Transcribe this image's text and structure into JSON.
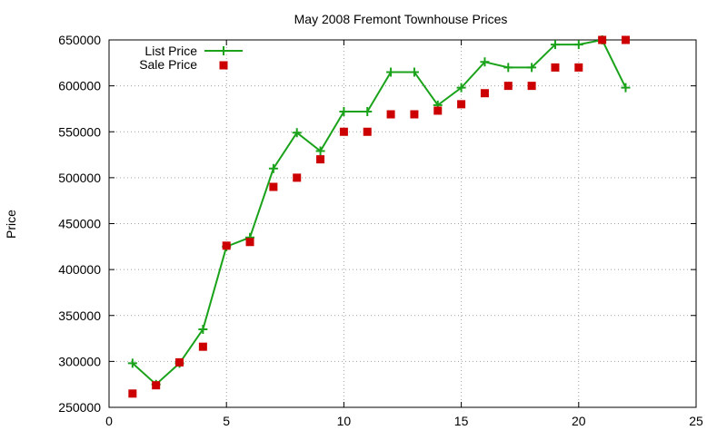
{
  "chart_data": {
    "type": "line",
    "title": "May 2008 Fremont Townhouse Prices",
    "xlabel": "",
    "ylabel": "Price",
    "xlim": [
      0,
      25
    ],
    "ylim": [
      250000,
      650000
    ],
    "x_ticks": [
      0,
      5,
      10,
      15,
      20,
      25
    ],
    "y_ticks": [
      250000,
      300000,
      350000,
      400000,
      450000,
      500000,
      550000,
      600000,
      650000
    ],
    "grid": true,
    "legend_position": "top-left",
    "series": [
      {
        "name": "List Price",
        "style": "line-plus",
        "color": "#1aa31a",
        "x": [
          1,
          2,
          3,
          4,
          5,
          6,
          7,
          8,
          9,
          10,
          11,
          12,
          13,
          14,
          15,
          16,
          17,
          18,
          19,
          20,
          21,
          22
        ],
        "y": [
          298000,
          275000,
          298000,
          335000,
          425000,
          435000,
          510000,
          549000,
          529000,
          572000,
          572000,
          615000,
          615000,
          579000,
          598000,
          626000,
          620000,
          620000,
          645000,
          645000,
          650000,
          598000
        ]
      },
      {
        "name": "Sale Price",
        "style": "square-points",
        "color": "#cc0000",
        "x": [
          1,
          2,
          3,
          4,
          5,
          6,
          7,
          8,
          9,
          10,
          11,
          12,
          13,
          14,
          15,
          16,
          17,
          18,
          19,
          20,
          21,
          22
        ],
        "y": [
          265000,
          274000,
          299000,
          316000,
          426000,
          430000,
          490000,
          500000,
          520000,
          550000,
          550000,
          569000,
          569000,
          573000,
          580000,
          592000,
          600000,
          600000,
          620000,
          620000,
          650000,
          650000
        ]
      }
    ]
  }
}
